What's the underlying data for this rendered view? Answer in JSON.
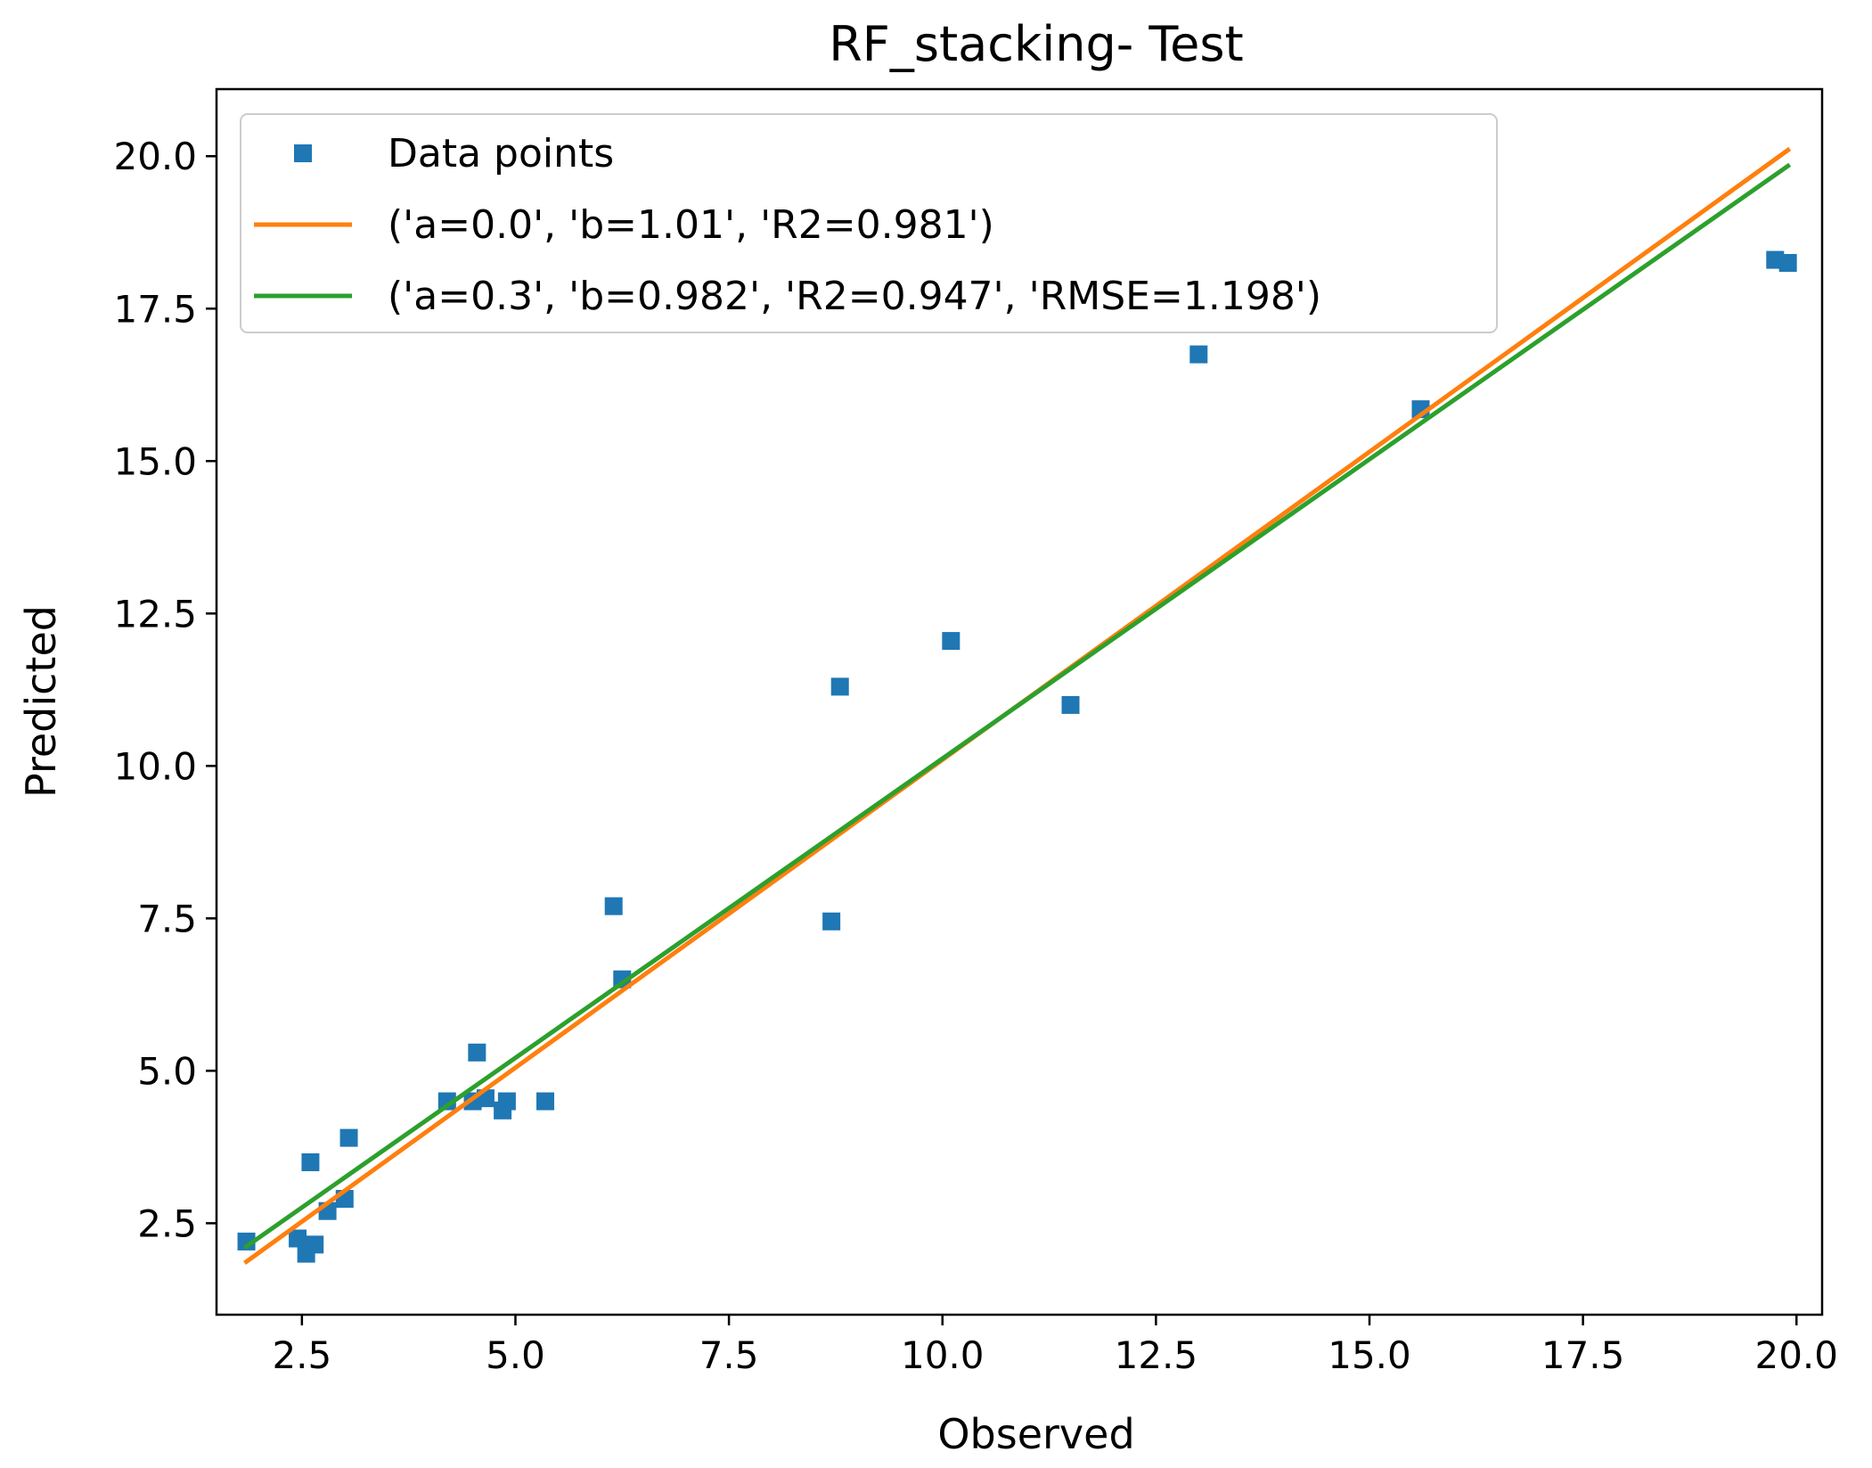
{
  "chart_data": {
    "type": "scatter",
    "title": "RF_stacking- Test",
    "xlabel": "Observed",
    "ylabel": "Predicted",
    "xlim": [
      1.5,
      20.3
    ],
    "ylim": [
      1.0,
      21.1
    ],
    "xticks": [
      2.5,
      5.0,
      7.5,
      10.0,
      12.5,
      15.0,
      17.5,
      20.0
    ],
    "xtick_labels": [
      "2.5",
      "5.0",
      "7.5",
      "10.0",
      "12.5",
      "15.0",
      "17.5",
      "20.0"
    ],
    "yticks": [
      2.5,
      5.0,
      7.5,
      10.0,
      12.5,
      15.0,
      17.5,
      20.0
    ],
    "ytick_labels": [
      "2.5",
      "5.0",
      "7.5",
      "10.0",
      "12.5",
      "15.0",
      "17.5",
      "20.0"
    ],
    "grid": false,
    "legend_position": "top-left",
    "series": [
      {
        "name": "Data points",
        "kind": "scatter",
        "marker": "square",
        "color": "#1f77b4",
        "points": [
          [
            1.85,
            2.2
          ],
          [
            2.45,
            2.25
          ],
          [
            2.55,
            2.0
          ],
          [
            2.6,
            3.5
          ],
          [
            2.65,
            2.15
          ],
          [
            2.8,
            2.7
          ],
          [
            3.0,
            2.9
          ],
          [
            3.05,
            3.9
          ],
          [
            4.2,
            4.5
          ],
          [
            4.5,
            4.5
          ],
          [
            4.55,
            5.3
          ],
          [
            4.65,
            4.55
          ],
          [
            4.85,
            4.35
          ],
          [
            4.9,
            4.5
          ],
          [
            5.35,
            4.5
          ],
          [
            6.15,
            7.7
          ],
          [
            6.25,
            6.5
          ],
          [
            8.7,
            7.45
          ],
          [
            8.8,
            11.3
          ],
          [
            10.1,
            12.05
          ],
          [
            11.5,
            11.0
          ],
          [
            13.0,
            16.75
          ],
          [
            15.6,
            15.85
          ],
          [
            19.75,
            18.3
          ],
          [
            19.9,
            18.25
          ]
        ]
      },
      {
        "name": "('a=0.0', 'b=1.01', 'R2=0.981')",
        "kind": "line",
        "color": "#ff7f0e",
        "points": [
          [
            1.85,
            1.87
          ],
          [
            19.9,
            20.1
          ]
        ]
      },
      {
        "name": "('a=0.3', 'b=0.982', 'R2=0.947', 'RMSE=1.198')",
        "kind": "line",
        "color": "#2ca02c",
        "points": [
          [
            1.85,
            2.12
          ],
          [
            19.9,
            19.84
          ]
        ]
      }
    ]
  }
}
